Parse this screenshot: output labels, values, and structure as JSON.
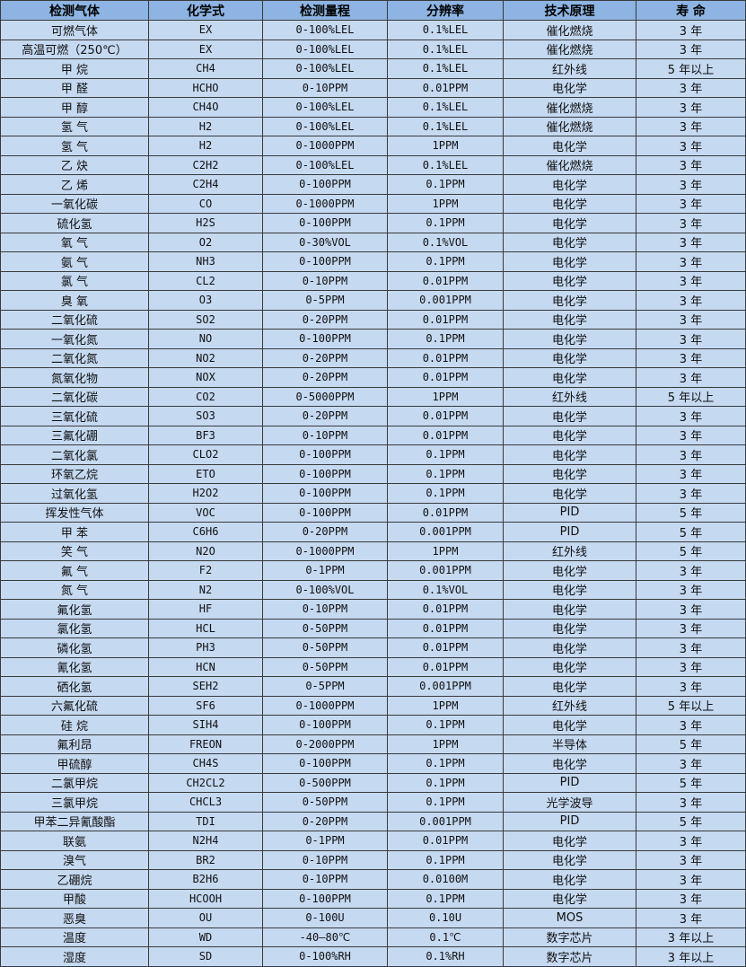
{
  "colors": {
    "header_bg": "#8DB4E2",
    "row_bg": "#C5D9F1",
    "border": "#3a3a3a"
  },
  "headers": [
    "检测气体",
    "化学式",
    "检测量程",
    "分辨率",
    "技术原理",
    "寿 命"
  ],
  "rows": [
    [
      "可燃气体",
      "EX",
      "0-100%LEL",
      "0.1%LEL",
      "催化燃烧",
      "3 年"
    ],
    [
      "高温可燃（250℃）",
      "EX",
      "0-100%LEL",
      "0.1%LEL",
      "催化燃烧",
      "3 年"
    ],
    [
      "甲 烷",
      "CH4",
      "0-100%LEL",
      "0.1%LEL",
      "红外线",
      "5 年以上"
    ],
    [
      "甲 醛",
      "HCHO",
      "0-10PPM",
      "0.01PPM",
      "电化学",
      "3 年"
    ],
    [
      "甲 醇",
      "CH4O",
      "0-100%LEL",
      "0.1%LEL",
      "催化燃烧",
      "3 年"
    ],
    [
      "氢 气",
      "H2",
      "0-100%LEL",
      "0.1%LEL",
      "催化燃烧",
      "3 年"
    ],
    [
      "氢 气",
      "H2",
      "0-1000PPM",
      "1PPM",
      "电化学",
      "3 年"
    ],
    [
      "乙 炔",
      "C2H2",
      "0-100%LEL",
      "0.1%LEL",
      "催化燃烧",
      "3 年"
    ],
    [
      "乙 烯",
      "C2H4",
      "0-100PPM",
      "0.1PPM",
      "电化学",
      "3 年"
    ],
    [
      "一氧化碳",
      "CO",
      "0-1000PPM",
      "1PPM",
      "电化学",
      "3 年"
    ],
    [
      "硫化氢",
      "H2S",
      "0-100PPM",
      "0.1PPM",
      "电化学",
      "3 年"
    ],
    [
      "氧 气",
      "O2",
      "0-30%VOL",
      "0.1%VOL",
      "电化学",
      "3 年"
    ],
    [
      "氨 气",
      "NH3",
      "0-100PPM",
      "0.1PPM",
      "电化学",
      "3 年"
    ],
    [
      "氯 气",
      "CL2",
      "0-10PPM",
      "0.01PPM",
      "电化学",
      "3 年"
    ],
    [
      "臭 氧",
      "O3",
      "0-5PPM",
      "0.001PPM",
      "电化学",
      "3 年"
    ],
    [
      "二氧化硫",
      "SO2",
      "0-20PPM",
      "0.01PPM",
      "电化学",
      "3 年"
    ],
    [
      "一氧化氮",
      "NO",
      "0-100PPM",
      "0.1PPM",
      "电化学",
      "3 年"
    ],
    [
      "二氧化氮",
      "NO2",
      "0-20PPM",
      "0.01PPM",
      "电化学",
      "3 年"
    ],
    [
      "氮氧化物",
      "NOX",
      "0-20PPM",
      "0.01PPM",
      "电化学",
      "3 年"
    ],
    [
      "二氧化碳",
      "CO2",
      "0-5000PPM",
      "1PPM",
      "红外线",
      "5 年以上"
    ],
    [
      "三氧化硫",
      "SO3",
      "0-20PPM",
      "0.01PPM",
      "电化学",
      "3 年"
    ],
    [
      "三氟化硼",
      "BF3",
      "0-10PPM",
      "0.01PPM",
      "电化学",
      "3 年"
    ],
    [
      "二氧化氯",
      "CLO2",
      "0-100PPM",
      "0.1PPM",
      "电化学",
      "3 年"
    ],
    [
      "环氧乙烷",
      "ETO",
      "0-100PPM",
      "0.1PPM",
      "电化学",
      "3 年"
    ],
    [
      "过氧化氢",
      "H2O2",
      "0-100PPM",
      "0.1PPM",
      "电化学",
      "3 年"
    ],
    [
      "挥发性气体",
      "VOC",
      "0-100PPM",
      "0.01PPM",
      "PID",
      "5 年"
    ],
    [
      "甲 苯",
      "C6H6",
      "0-20PPM",
      "0.001PPM",
      "PID",
      "5 年"
    ],
    [
      "笑 气",
      "N2O",
      "0-1000PPM",
      "1PPM",
      "红外线",
      "5 年"
    ],
    [
      "氟 气",
      "F2",
      "0-1PPM",
      "0.001PPM",
      "电化学",
      "3 年"
    ],
    [
      "氮 气",
      "N2",
      "0-100%VOL",
      "0.1%VOL",
      "电化学",
      "3 年"
    ],
    [
      "氟化氢",
      "HF",
      "0-10PPM",
      "0.01PPM",
      "电化学",
      "3 年"
    ],
    [
      "氯化氢",
      "HCL",
      "0-50PPM",
      "0.01PPM",
      "电化学",
      "3 年"
    ],
    [
      "磷化氢",
      "PH3",
      "0-50PPM",
      "0.01PPM",
      "电化学",
      "3 年"
    ],
    [
      "氰化氢",
      "HCN",
      "0-50PPM",
      "0.01PPM",
      "电化学",
      "3 年"
    ],
    [
      "硒化氢",
      "SEH2",
      "0-5PPM",
      "0.001PPM",
      "电化学",
      "3 年"
    ],
    [
      "六氟化硫",
      "SF6",
      "0-1000PPM",
      "1PPM",
      "红外线",
      "5 年以上"
    ],
    [
      "硅 烷",
      "SIH4",
      "0-100PPM",
      "0.1PPM",
      "电化学",
      "3 年"
    ],
    [
      "氟利昂",
      "FREON",
      "0-2000PPM",
      "1PPM",
      "半导体",
      "5 年"
    ],
    [
      "甲硫醇",
      "CH4S",
      "0-100PPM",
      "0.1PPM",
      "电化学",
      "3 年"
    ],
    [
      "二氯甲烷",
      "CH2CL2",
      "0-500PPM",
      "0.1PPM",
      "PID",
      "5 年"
    ],
    [
      "三氯甲烷",
      "CHCL3",
      "0-50PPM",
      "0.1PPM",
      "光学波导",
      "3 年"
    ],
    [
      "甲苯二异氰酸酯",
      "TDI",
      "0-20PPM",
      "0.001PPM",
      "PID",
      "5 年"
    ],
    [
      "联氨",
      "N2H4",
      "0-1PPM",
      "0.01PPM",
      "电化学",
      "3 年"
    ],
    [
      "溴气",
      "BR2",
      "0-10PPM",
      "0.1PPM",
      "电化学",
      "3 年"
    ],
    [
      "乙硼烷",
      "B2H6",
      "0-10PPM",
      "0.0100M",
      "电化学",
      "3 年"
    ],
    [
      "甲酸",
      "HCOOH",
      "0-100PPM",
      "0.1PPM",
      "电化学",
      "3 年"
    ],
    [
      "恶臭",
      "OU",
      "0-100U",
      "0.10U",
      "MOS",
      "3 年"
    ],
    [
      "温度",
      "WD",
      "-40—80℃",
      "0.1℃",
      "数字芯片",
      "3 年以上"
    ],
    [
      "湿度",
      "SD",
      "0-100%RH",
      "0.1%RH",
      "数字芯片",
      "3 年以上"
    ]
  ]
}
